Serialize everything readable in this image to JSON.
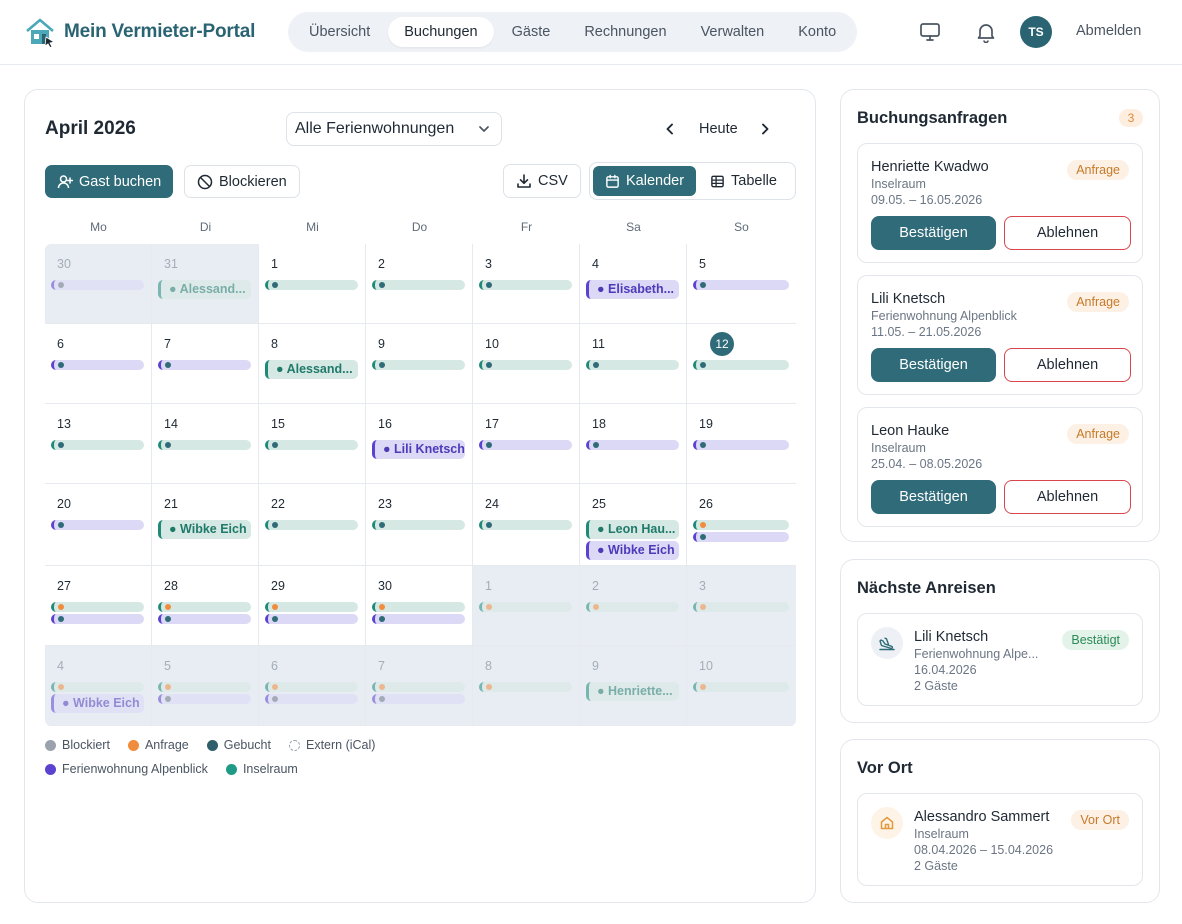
{
  "app": {
    "title": "Mein Vermieter-Portal",
    "nav": [
      "Übersicht",
      "Buchungen",
      "Gäste",
      "Rechnungen",
      "Verwalten",
      "Konto"
    ],
    "nav_active": "Buchungen",
    "avatar_initials": "TS",
    "logout_label": "Abmelden",
    "brand_color": "#2f6b78"
  },
  "calendar": {
    "title": "April 2026",
    "filter_value": "Alle Ferienwohnungen",
    "today_label": "Heute",
    "buttons": {
      "book_guest": "Gast buchen",
      "block": "Blockieren",
      "csv": "CSV",
      "calendar_view": "Kalender",
      "table_view": "Tabelle"
    },
    "weekdays": [
      "Mo",
      "Di",
      "Mi",
      "Do",
      "Fr",
      "Sa",
      "So"
    ],
    "weeks": [
      [
        {
          "n": "30",
          "out": true,
          "events": [
            {
              "k": "bar",
              "c": "purple",
              "d": "#6b7684"
            }
          ]
        },
        {
          "n": "31",
          "out": true,
          "events": [
            {
              "k": "pill",
              "c": "teal",
              "t": "Alessand..."
            }
          ]
        },
        {
          "n": "1",
          "events": [
            {
              "k": "bar",
              "c": "teal",
              "d": "#2f6b78"
            }
          ]
        },
        {
          "n": "2",
          "events": [
            {
              "k": "bar",
              "c": "teal",
              "d": "#2f6b78"
            }
          ]
        },
        {
          "n": "3",
          "events": [
            {
              "k": "bar",
              "c": "teal",
              "d": "#2f6b78"
            }
          ]
        },
        {
          "n": "4",
          "events": [
            {
              "k": "pill",
              "c": "purple",
              "t": "Elisabeth..."
            }
          ]
        },
        {
          "n": "5",
          "events": [
            {
              "k": "bar",
              "c": "purple",
              "d": "#2f6b78"
            }
          ]
        }
      ],
      [
        {
          "n": "6",
          "events": [
            {
              "k": "bar",
              "c": "purple",
              "d": "#2f6b78"
            }
          ]
        },
        {
          "n": "7",
          "events": [
            {
              "k": "bar",
              "c": "purple",
              "d": "#2f6b78"
            }
          ]
        },
        {
          "n": "8",
          "events": [
            {
              "k": "pill",
              "c": "teal",
              "t": "Alessand..."
            }
          ]
        },
        {
          "n": "9",
          "events": [
            {
              "k": "bar",
              "c": "teal",
              "d": "#2f6b78"
            }
          ]
        },
        {
          "n": "10",
          "events": [
            {
              "k": "bar",
              "c": "teal",
              "d": "#2f6b78"
            }
          ]
        },
        {
          "n": "11",
          "events": [
            {
              "k": "bar",
              "c": "teal",
              "d": "#2f6b78"
            }
          ]
        },
        {
          "n": "12",
          "today": true,
          "events": [
            {
              "k": "bar",
              "c": "teal",
              "d": "#2f6b78"
            }
          ]
        }
      ],
      [
        {
          "n": "13",
          "events": [
            {
              "k": "bar",
              "c": "teal",
              "d": "#2f6b78"
            }
          ]
        },
        {
          "n": "14",
          "events": [
            {
              "k": "bar",
              "c": "teal",
              "d": "#2f6b78"
            }
          ]
        },
        {
          "n": "15",
          "events": [
            {
              "k": "bar",
              "c": "teal",
              "d": "#2f6b78"
            }
          ]
        },
        {
          "n": "16",
          "events": [
            {
              "k": "pill",
              "c": "purple",
              "t": "Lili Knetsch"
            }
          ]
        },
        {
          "n": "17",
          "events": [
            {
              "k": "bar",
              "c": "purple",
              "d": "#2f6b78"
            }
          ]
        },
        {
          "n": "18",
          "events": [
            {
              "k": "bar",
              "c": "purple",
              "d": "#2f6b78"
            }
          ]
        },
        {
          "n": "19",
          "events": [
            {
              "k": "bar",
              "c": "purple",
              "d": "#2f6b78"
            }
          ]
        }
      ],
      [
        {
          "n": "20",
          "events": [
            {
              "k": "bar",
              "c": "purple",
              "d": "#2f6b78"
            }
          ]
        },
        {
          "n": "21",
          "events": [
            {
              "k": "pill",
              "c": "teal",
              "t": "Wibke Eich"
            }
          ]
        },
        {
          "n": "22",
          "events": [
            {
              "k": "bar",
              "c": "teal",
              "d": "#2f6b78"
            }
          ]
        },
        {
          "n": "23",
          "events": [
            {
              "k": "bar",
              "c": "teal",
              "d": "#2f6b78"
            }
          ]
        },
        {
          "n": "24",
          "events": [
            {
              "k": "bar",
              "c": "teal",
              "d": "#2f6b78"
            }
          ]
        },
        {
          "n": "25",
          "events": [
            {
              "k": "pill",
              "c": "teal",
              "t": "Leon Hau..."
            },
            {
              "k": "pill",
              "c": "purple",
              "t": "Wibke Eich"
            }
          ]
        },
        {
          "n": "26",
          "events": [
            {
              "k": "bar",
              "c": "teal",
              "d": "#f08c3c"
            },
            {
              "k": "bar",
              "c": "purple",
              "d": "#2f6b78"
            }
          ]
        }
      ],
      [
        {
          "n": "27",
          "events": [
            {
              "k": "bar",
              "c": "teal",
              "d": "#f08c3c"
            },
            {
              "k": "bar",
              "c": "purple",
              "d": "#2f6b78"
            }
          ]
        },
        {
          "n": "28",
          "events": [
            {
              "k": "bar",
              "c": "teal",
              "d": "#f08c3c"
            },
            {
              "k": "bar",
              "c": "purple",
              "d": "#2f6b78"
            }
          ]
        },
        {
          "n": "29",
          "events": [
            {
              "k": "bar",
              "c": "teal",
              "d": "#f08c3c"
            },
            {
              "k": "bar",
              "c": "purple",
              "d": "#2f6b78"
            }
          ]
        },
        {
          "n": "30",
          "events": [
            {
              "k": "bar",
              "c": "teal",
              "d": "#f08c3c"
            },
            {
              "k": "bar",
              "c": "purple",
              "d": "#2f6b78"
            }
          ]
        },
        {
          "n": "1",
          "out": true,
          "events": [
            {
              "k": "bar",
              "c": "teal",
              "d": "#f08c3c"
            }
          ]
        },
        {
          "n": "2",
          "out": true,
          "events": [
            {
              "k": "bar",
              "c": "teal",
              "d": "#f08c3c"
            }
          ]
        },
        {
          "n": "3",
          "out": true,
          "events": [
            {
              "k": "bar",
              "c": "teal",
              "d": "#f08c3c"
            }
          ]
        }
      ],
      [
        {
          "n": "4",
          "out": true,
          "events": [
            {
              "k": "bar",
              "c": "teal",
              "d": "#f08c3c"
            },
            {
              "k": "pill",
              "c": "purple",
              "t": "Wibke Eich"
            }
          ]
        },
        {
          "n": "5",
          "out": true,
          "events": [
            {
              "k": "bar",
              "c": "teal",
              "d": "#f08c3c"
            },
            {
              "k": "bar",
              "c": "purple",
              "d": "#6b7684"
            }
          ]
        },
        {
          "n": "6",
          "out": true,
          "events": [
            {
              "k": "bar",
              "c": "teal",
              "d": "#f08c3c"
            },
            {
              "k": "bar",
              "c": "purple",
              "d": "#6b7684"
            }
          ]
        },
        {
          "n": "7",
          "out": true,
          "events": [
            {
              "k": "bar",
              "c": "teal",
              "d": "#f08c3c"
            },
            {
              "k": "bar",
              "c": "purple",
              "d": "#6b7684"
            }
          ]
        },
        {
          "n": "8",
          "out": true,
          "events": [
            {
              "k": "bar",
              "c": "teal",
              "d": "#f08c3c"
            }
          ]
        },
        {
          "n": "9",
          "out": true,
          "events": [
            {
              "k": "pill",
              "c": "teal",
              "t": "Henriette..."
            }
          ]
        },
        {
          "n": "10",
          "out": true,
          "events": [
            {
              "k": "bar",
              "c": "teal",
              "d": "#f08c3c"
            }
          ]
        }
      ]
    ],
    "legend": [
      [
        {
          "label": "Blockiert",
          "color": "#9aa3ad"
        },
        {
          "label": "Anfrage",
          "color": "#f08c3c"
        },
        {
          "label": "Gebucht",
          "color": "#2f5f6b"
        },
        {
          "label": "Extern (iCal)",
          "color": "outline"
        }
      ],
      [
        {
          "label": "Ferienwohnung Alpenblick",
          "color": "#5b43cf"
        },
        {
          "label": "Inselraum",
          "color": "#1f9a86"
        }
      ]
    ]
  },
  "requests": {
    "title": "Buchungsanfragen",
    "count": "3",
    "confirm_label": "Bestätigen",
    "decline_label": "Ablehnen",
    "items": [
      {
        "name": "Henriette Kwadwo",
        "status": "Anfrage",
        "property": "Inselraum",
        "dates": "09.05. – 16.05.2026"
      },
      {
        "name": "Lili Knetsch",
        "status": "Anfrage",
        "property": "Ferienwohnung Alpenblick",
        "dates": "11.05. – 21.05.2026"
      },
      {
        "name": "Leon Hauke",
        "status": "Anfrage",
        "property": "Inselraum",
        "dates": "25.04. – 08.05.2026"
      }
    ]
  },
  "arrivals": {
    "title": "Nächste Anreisen",
    "item": {
      "name": "Lili Knetsch",
      "status": "Bestätigt",
      "property": "Ferienwohnung Alpe...",
      "date": "16.04.2026",
      "guests": "2 Gäste"
    }
  },
  "onsite": {
    "title": "Vor Ort",
    "item": {
      "name": "Alessandro Sammert",
      "status": "Vor Ort",
      "property": "Inselraum",
      "dates": "08.04.2026 – 15.04.2026",
      "guests": "2 Gäste"
    }
  }
}
